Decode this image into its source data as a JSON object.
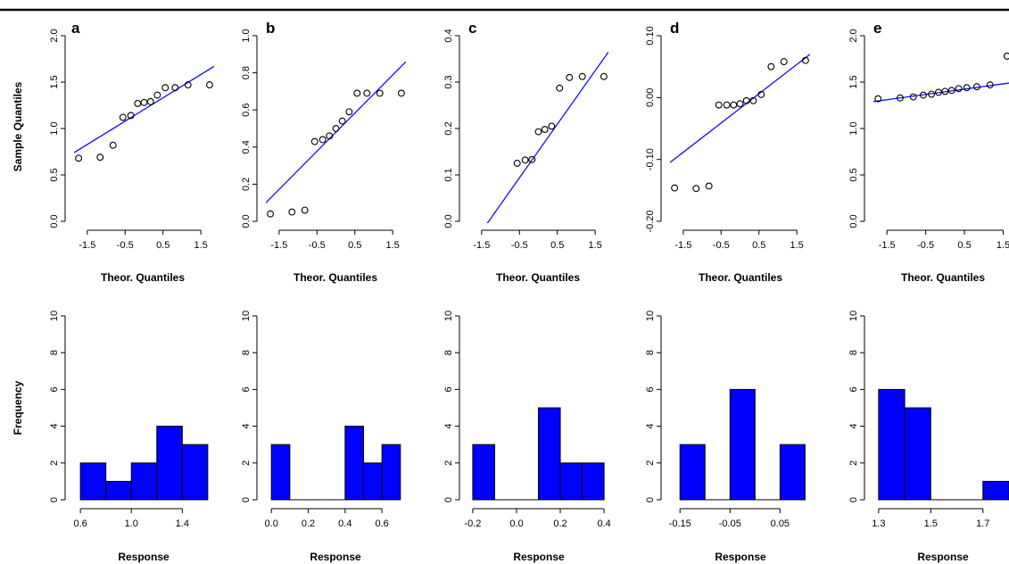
{
  "figure": {
    "row_labels": {
      "qq_ylabel": "Sample Quantiles",
      "qq_xlabel": "Theor. Quantiles",
      "hist_ylabel": "Frequency",
      "hist_xlabel": "Response"
    }
  },
  "colors": {
    "line": "#1010ff",
    "bar_fill": "#0000ff",
    "bar_stroke": "#000000",
    "axis": "#000000",
    "top_rule": "#000000"
  },
  "chart_data": [
    {
      "type": "scatter",
      "panel": "a",
      "xlabel": "Theor. Quantiles",
      "ylabel": "Sample Quantiles",
      "xlim": [
        -1.85,
        1.85
      ],
      "ylim": [
        0.0,
        2.0
      ],
      "xticks": [
        -1.5,
        -0.5,
        0.5,
        1.5
      ],
      "xtick_labels": [
        "-1.5",
        "-0.5",
        "0.5",
        "1.5"
      ],
      "yticks": [
        0.0,
        0.5,
        1.0,
        1.5,
        2.0
      ],
      "ytick_labels": [
        "0.0",
        "0.5",
        "1.0",
        "1.5",
        "2.0"
      ],
      "points": {
        "x": [
          -1.73,
          -1.16,
          -0.82,
          -0.56,
          -0.35,
          -0.17,
          0.0,
          0.17,
          0.35,
          0.56,
          0.82,
          1.16,
          1.73
        ],
        "y": [
          0.68,
          0.69,
          0.82,
          1.12,
          1.14,
          1.27,
          1.28,
          1.29,
          1.36,
          1.44,
          1.44,
          1.47,
          1.47
        ]
      },
      "reference_line": {
        "x": [
          -1.85,
          1.85
        ],
        "y": [
          0.74,
          1.67
        ]
      }
    },
    {
      "type": "scatter",
      "panel": "b",
      "xlabel": "Theor. Quantiles",
      "ylabel": "",
      "xlim": [
        -1.85,
        1.85
      ],
      "ylim": [
        0.0,
        1.0
      ],
      "xticks": [
        -1.5,
        -0.5,
        0.5,
        1.5
      ],
      "xtick_labels": [
        "-1.5",
        "-0.5",
        "0.5",
        "1.5"
      ],
      "yticks": [
        0.0,
        0.2,
        0.4,
        0.6,
        0.8,
        1.0
      ],
      "ytick_labels": [
        "0.0",
        "0.2",
        "0.4",
        "0.6",
        "0.8",
        "1.0"
      ],
      "points": {
        "x": [
          -1.73,
          -1.16,
          -0.82,
          -0.56,
          -0.35,
          -0.17,
          0.0,
          0.17,
          0.35,
          0.56,
          0.82,
          1.16,
          1.73
        ],
        "y": [
          0.04,
          0.05,
          0.06,
          0.43,
          0.44,
          0.46,
          0.5,
          0.54,
          0.59,
          0.69,
          0.69,
          0.69,
          0.69
        ]
      },
      "reference_line": {
        "x": [
          -1.85,
          1.85
        ],
        "y": [
          0.1,
          0.86
        ]
      }
    },
    {
      "type": "scatter",
      "panel": "c",
      "xlabel": "Theor. Quantiles",
      "ylabel": "",
      "xlim": [
        -1.85,
        1.85
      ],
      "ylim": [
        0.0,
        0.4
      ],
      "xticks": [
        -1.5,
        -0.5,
        0.5,
        1.5
      ],
      "xtick_labels": [
        "-1.5",
        "-0.5",
        "0.5",
        "1.5"
      ],
      "yticks": [
        0.0,
        0.1,
        0.2,
        0.3,
        0.4
      ],
      "ytick_labels": [
        "0.0",
        "0.1",
        "0.2",
        "0.3",
        "0.4"
      ],
      "points": {
        "x": [
          -0.56,
          -0.35,
          -0.17,
          0.0,
          0.17,
          0.35,
          0.56,
          0.82,
          1.16,
          1.73
        ],
        "y": [
          0.125,
          0.132,
          0.133,
          0.193,
          0.198,
          0.205,
          0.287,
          0.31,
          0.312,
          0.312
        ]
      },
      "reference_line": {
        "x": [
          -1.4,
          1.85
        ],
        "y": [
          -0.01,
          0.365
        ]
      }
    },
    {
      "type": "scatter",
      "panel": "d",
      "xlabel": "Theor. Quantiles",
      "ylabel": "",
      "xlim": [
        -1.85,
        1.85
      ],
      "ylim": [
        -0.2,
        0.1
      ],
      "xticks": [
        -1.5,
        -0.5,
        0.5,
        1.5
      ],
      "xtick_labels": [
        "-1.5",
        "-0.5",
        "0.5",
        "1.5"
      ],
      "yticks": [
        -0.2,
        -0.1,
        0.0,
        0.1
      ],
      "ytick_labels": [
        "-0.20",
        "-0.10",
        "0.00",
        "0.10"
      ],
      "points": {
        "x": [
          -1.73,
          -1.16,
          -0.82,
          -0.56,
          -0.35,
          -0.17,
          0.0,
          0.17,
          0.35,
          0.56,
          0.82,
          1.16,
          1.73
        ],
        "y": [
          -0.146,
          -0.147,
          -0.143,
          -0.012,
          -0.012,
          -0.012,
          -0.01,
          -0.005,
          -0.005,
          0.005,
          0.05,
          0.058,
          0.06
        ]
      },
      "reference_line": {
        "x": [
          -1.85,
          1.85
        ],
        "y": [
          -0.105,
          0.07
        ]
      }
    },
    {
      "type": "scatter",
      "panel": "e",
      "xlabel": "Theor. Quantiles",
      "ylabel": "",
      "xlim": [
        -1.85,
        1.65
      ],
      "ylim": [
        0.0,
        2.0
      ],
      "xticks": [
        -1.5,
        -0.5,
        0.5,
        1.5
      ],
      "xtick_labels": [
        "-1.5",
        "-0.5",
        "0.5",
        "1.5"
      ],
      "yticks": [
        0.0,
        0.5,
        1.0,
        1.5,
        2.0
      ],
      "ytick_labels": [
        "0.0",
        "0.5",
        "1.0",
        "1.5",
        "2.0"
      ],
      "points": {
        "x": [
          -1.73,
          -1.16,
          -0.82,
          -0.56,
          -0.35,
          -0.17,
          0.0,
          0.17,
          0.35,
          0.56,
          0.82,
          1.16,
          1.6
        ],
        "y": [
          1.32,
          1.33,
          1.34,
          1.36,
          1.37,
          1.39,
          1.4,
          1.41,
          1.43,
          1.44,
          1.45,
          1.47,
          1.78
        ]
      },
      "reference_line": {
        "x": [
          -1.85,
          1.65
        ],
        "y": [
          1.29,
          1.49
        ]
      }
    },
    {
      "type": "bar",
      "panel": "a",
      "xlabel": "Response",
      "ylabel": "Frequency",
      "xlim": [
        0.55,
        1.65
      ],
      "ylim": [
        0,
        10
      ],
      "xticks": [
        0.6,
        1.0,
        1.4
      ],
      "xtick_labels": [
        "0.6",
        "1.0",
        "1.4"
      ],
      "yticks": [
        0,
        2,
        4,
        6,
        8,
        10
      ],
      "ytick_labels": [
        "0",
        "2",
        "4",
        "6",
        "8",
        "10"
      ],
      "bins": [
        [
          0.6,
          0.8
        ],
        [
          0.8,
          1.0
        ],
        [
          1.0,
          1.2
        ],
        [
          1.2,
          1.4
        ],
        [
          1.4,
          1.6
        ]
      ],
      "values": [
        2,
        1,
        2,
        4,
        3
      ]
    },
    {
      "type": "bar",
      "panel": "b",
      "xlabel": "Response",
      "ylabel": "",
      "xlim": [
        -0.03,
        0.73
      ],
      "ylim": [
        0,
        10
      ],
      "xticks": [
        0.0,
        0.2,
        0.4,
        0.6
      ],
      "xtick_labels": [
        "0.0",
        "0.2",
        "0.4",
        "0.6"
      ],
      "yticks": [
        0,
        2,
        4,
        6,
        8,
        10
      ],
      "ytick_labels": [
        "0",
        "2",
        "4",
        "6",
        "8",
        "10"
      ],
      "bins": [
        [
          0.0,
          0.1
        ],
        [
          0.1,
          0.2
        ],
        [
          0.2,
          0.3
        ],
        [
          0.3,
          0.4
        ],
        [
          0.4,
          0.5
        ],
        [
          0.5,
          0.6
        ],
        [
          0.6,
          0.7
        ]
      ],
      "values": [
        3,
        0,
        0,
        0,
        4,
        2,
        3
      ]
    },
    {
      "type": "bar",
      "panel": "c",
      "xlabel": "Response",
      "ylabel": "",
      "xlim": [
        -0.22,
        0.42
      ],
      "ylim": [
        0,
        10
      ],
      "xticks": [
        -0.2,
        0.0,
        0.2,
        0.4
      ],
      "xtick_labels": [
        "-0.2",
        "0.0",
        "0.2",
        "0.4"
      ],
      "yticks": [
        0,
        2,
        4,
        6,
        8,
        10
      ],
      "ytick_labels": [
        "0",
        "2",
        "4",
        "6",
        "8",
        "10"
      ],
      "bins": [
        [
          -0.2,
          -0.1
        ],
        [
          -0.1,
          0.0
        ],
        [
          0.0,
          0.1
        ],
        [
          0.1,
          0.2
        ],
        [
          0.2,
          0.3
        ],
        [
          0.3,
          0.4
        ]
      ],
      "values": [
        3,
        0,
        0,
        5,
        2,
        2
      ]
    },
    {
      "type": "bar",
      "panel": "d",
      "xlabel": "Response",
      "ylabel": "",
      "xlim": [
        -0.17,
        0.11
      ],
      "ylim": [
        0,
        10
      ],
      "xticks": [
        -0.15,
        -0.05,
        0.05
      ],
      "xtick_labels": [
        "-0.15",
        "-0.05",
        "0.05"
      ],
      "yticks": [
        0,
        2,
        4,
        6,
        8,
        10
      ],
      "ytick_labels": [
        "0",
        "2",
        "4",
        "6",
        "8",
        "10"
      ],
      "bins": [
        [
          -0.15,
          -0.1
        ],
        [
          -0.1,
          -0.05
        ],
        [
          -0.05,
          0.0
        ],
        [
          0.0,
          0.05
        ],
        [
          0.05,
          0.1
        ]
      ],
      "values": [
        3,
        0,
        6,
        0,
        3
      ]
    },
    {
      "type": "bar",
      "panel": "e",
      "xlabel": "Response",
      "ylabel": "",
      "xlim": [
        1.28,
        1.8
      ],
      "ylim": [
        0,
        10
      ],
      "xticks": [
        1.3,
        1.5,
        1.7
      ],
      "xtick_labels": [
        "1.3",
        "1.5",
        "1.7"
      ],
      "yticks": [
        0,
        2,
        4,
        6,
        8,
        10
      ],
      "ytick_labels": [
        "0",
        "2",
        "4",
        "6",
        "8",
        "10"
      ],
      "bins": [
        [
          1.3,
          1.4
        ],
        [
          1.4,
          1.5
        ],
        [
          1.5,
          1.6
        ],
        [
          1.6,
          1.7
        ],
        [
          1.7,
          1.8
        ]
      ],
      "values": [
        6,
        5,
        0,
        0,
        1
      ]
    }
  ]
}
